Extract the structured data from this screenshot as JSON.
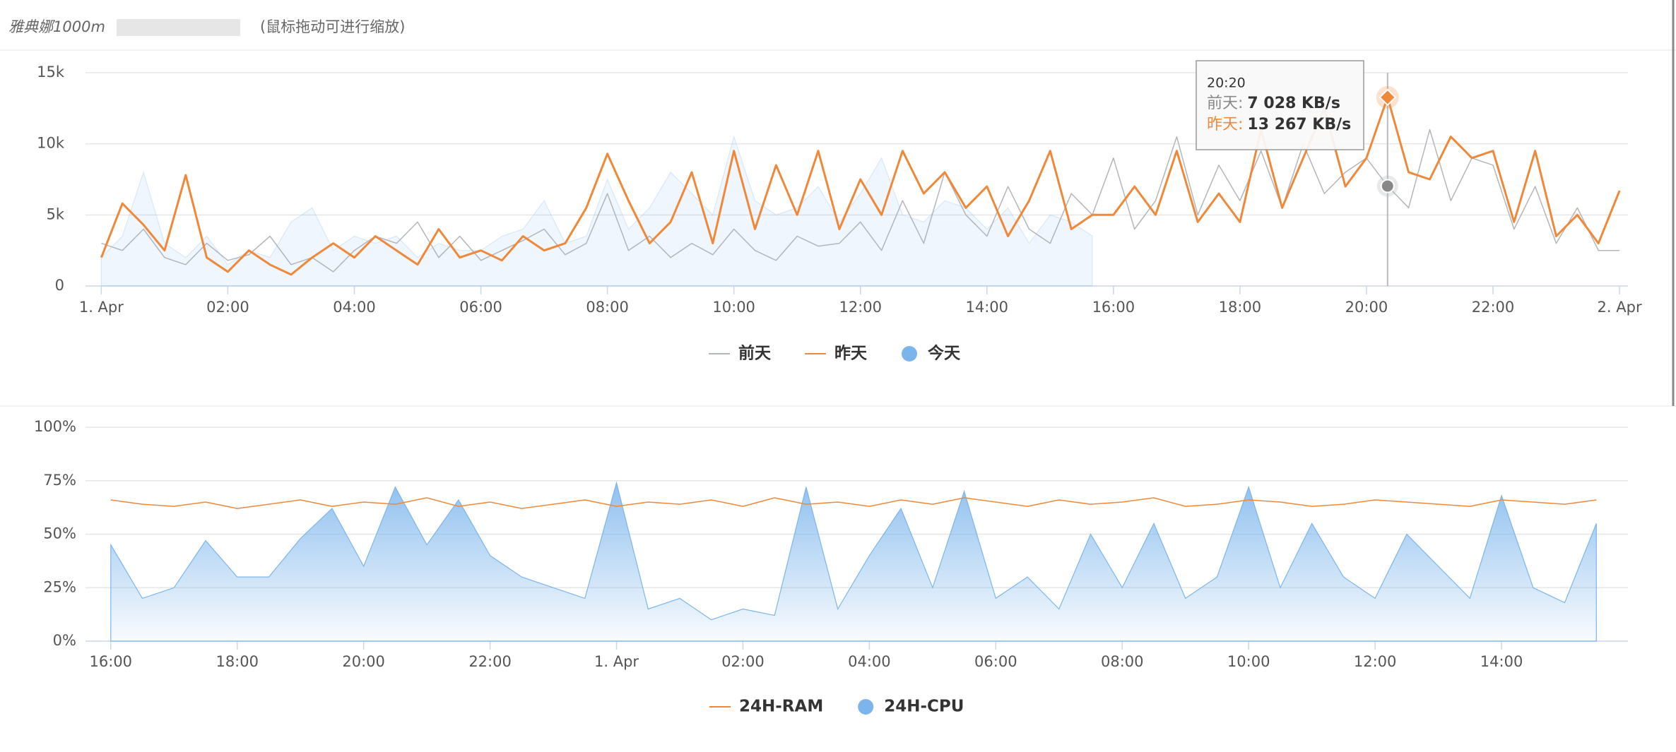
{
  "header": {
    "title": "雅典娜1000m",
    "subtitle": "(鼠标拖动可进行缩放)"
  },
  "tooltip": {
    "time": "20:20",
    "rows": [
      {
        "label": "前天:",
        "value": "7 028 KB/s"
      },
      {
        "label": "昨天:",
        "value": "13 267 KB/s"
      }
    ]
  },
  "chart_data": [
    {
      "type": "line",
      "xlim": [
        -15,
        1448
      ],
      "ylim": [
        0,
        15000
      ],
      "xticks": [
        {
          "value": 0,
          "label": "1. Apr"
        },
        {
          "value": 120,
          "label": "02:00"
        },
        {
          "value": 240,
          "label": "04:00"
        },
        {
          "value": 360,
          "label": "06:00"
        },
        {
          "value": 480,
          "label": "08:00"
        },
        {
          "value": 600,
          "label": "10:00"
        },
        {
          "value": 720,
          "label": "12:00"
        },
        {
          "value": 840,
          "label": "14:00"
        },
        {
          "value": 960,
          "label": "16:00"
        },
        {
          "value": 1080,
          "label": "18:00"
        },
        {
          "value": 1200,
          "label": "20:00"
        },
        {
          "value": 1320,
          "label": "22:00"
        },
        {
          "value": 1440,
          "label": "2. Apr"
        }
      ],
      "yticks": [
        0,
        {
          "value": 5000,
          "label": "5k"
        },
        {
          "value": 10000,
          "label": "10k"
        },
        {
          "value": 15000,
          "label": "15k"
        }
      ],
      "grid": true,
      "x": [
        0,
        20,
        40,
        60,
        80,
        100,
        120,
        140,
        160,
        180,
        200,
        220,
        240,
        260,
        280,
        300,
        320,
        340,
        360,
        380,
        400,
        420,
        440,
        460,
        480,
        500,
        520,
        540,
        560,
        580,
        600,
        620,
        640,
        660,
        680,
        700,
        720,
        740,
        760,
        780,
        800,
        820,
        840,
        860,
        880,
        900,
        920,
        940,
        960,
        980,
        1000,
        1020,
        1040,
        1060,
        1080,
        1100,
        1120,
        1140,
        1160,
        1180,
        1200,
        1220,
        1240,
        1260,
        1280,
        1300,
        1320,
        1340,
        1360,
        1380,
        1400,
        1420,
        1440
      ],
      "series": [
        {
          "name": "前天",
          "type": "line",
          "color": "#b2b6bb",
          "values": [
            3000,
            2500,
            4000,
            2000,
            1500,
            3000,
            1800,
            2200,
            3500,
            1500,
            2000,
            1000,
            2500,
            3500,
            3000,
            4500,
            2000,
            3500,
            1800,
            2500,
            3200,
            4000,
            2200,
            3000,
            6500,
            2500,
            3500,
            2000,
            3000,
            2200,
            4000,
            2500,
            1800,
            3500,
            2800,
            3000,
            4500,
            2500,
            6000,
            3000,
            8000,
            5000,
            3500,
            7000,
            4000,
            3000,
            6500,
            5000,
            9000,
            4000,
            6000,
            10500,
            5000,
            8500,
            6000,
            9500,
            5500,
            10000,
            6500,
            8000,
            9000,
            7028,
            5500,
            11000,
            6000,
            9000,
            8500,
            4000,
            7000,
            3000,
            5500,
            2500,
            2500
          ]
        },
        {
          "name": "昨天",
          "type": "line",
          "color": "#f0883a",
          "values": [
            2000,
            5800,
            4300,
            2500,
            7800,
            2000,
            1000,
            2500,
            1500,
            800,
            2000,
            3000,
            2000,
            3500,
            2500,
            1500,
            4000,
            2000,
            2500,
            1800,
            3500,
            2500,
            3000,
            5500,
            9300,
            6000,
            3000,
            4500,
            8000,
            3000,
            9500,
            4000,
            8500,
            5000,
            9500,
            4000,
            7500,
            5000,
            9500,
            6500,
            8000,
            5500,
            7000,
            3500,
            6000,
            9500,
            4000,
            5000,
            5000,
            7000,
            5000,
            9500,
            4500,
            6500,
            4500,
            11000,
            5500,
            9000,
            12500,
            7000,
            9000,
            13267,
            8000,
            7500,
            10500,
            9000,
            9500,
            4500,
            9500,
            3500,
            5000,
            3000,
            6700
          ]
        },
        {
          "name": "今天",
          "type": "area",
          "color": "#7cb5ec",
          "values": [
            2000,
            3500,
            8000,
            3000,
            2000,
            3500,
            1500,
            2500,
            2000,
            4500,
            5500,
            2500,
            3500,
            3000,
            3500,
            2000,
            3000,
            2500,
            2500,
            3500,
            4000,
            6000,
            3000,
            3500,
            7500,
            4000,
            5500,
            8000,
            6500,
            5000,
            10500,
            6000,
            5000,
            5500,
            7000,
            4500,
            6500,
            9000,
            5000,
            4500,
            6000,
            5500,
            4000,
            5500,
            3000,
            5000,
            4500,
            3500,
            null,
            null,
            null,
            null,
            null,
            null,
            null,
            null,
            null,
            null,
            null,
            null,
            null,
            null,
            null,
            null,
            null,
            null,
            null,
            null,
            null,
            null,
            null,
            null,
            null
          ]
        }
      ]
    },
    {
      "type": "line",
      "xlim": [
        -504,
        960
      ],
      "ylim": [
        0,
        100
      ],
      "xticks": [
        {
          "value": -480,
          "label": "16:00"
        },
        {
          "value": -360,
          "label": "18:00"
        },
        {
          "value": -240,
          "label": "20:00"
        },
        {
          "value": -120,
          "label": "22:00"
        },
        {
          "value": 0,
          "label": "1. Apr"
        },
        {
          "value": 120,
          "label": "02:00"
        },
        {
          "value": 240,
          "label": "04:00"
        },
        {
          "value": 360,
          "label": "06:00"
        },
        {
          "value": 480,
          "label": "08:00"
        },
        {
          "value": 600,
          "label": "10:00"
        },
        {
          "value": 720,
          "label": "12:00"
        },
        {
          "value": 840,
          "label": "14:00"
        }
      ],
      "yticks": [
        {
          "value": 0,
          "label": "0%"
        },
        {
          "value": 25,
          "label": "25%"
        },
        {
          "value": 50,
          "label": "50%"
        },
        {
          "value": 75,
          "label": "75%"
        },
        {
          "value": 100,
          "label": "100%"
        }
      ],
      "grid": true,
      "x": [
        -480,
        -450,
        -420,
        -390,
        -360,
        -330,
        -300,
        -270,
        -240,
        -210,
        -180,
        -150,
        -120,
        -90,
        -60,
        -30,
        0,
        30,
        60,
        90,
        120,
        150,
        180,
        210,
        240,
        270,
        300,
        330,
        360,
        390,
        420,
        450,
        480,
        510,
        540,
        570,
        600,
        630,
        660,
        690,
        720,
        750,
        780,
        810,
        840,
        870,
        900,
        930
      ],
      "series": [
        {
          "name": "24H-RAM",
          "type": "line",
          "color": "#f0883a",
          "values": [
            66,
            64,
            63,
            65,
            62,
            64,
            66,
            63,
            65,
            64,
            67,
            63,
            65,
            62,
            64,
            66,
            63,
            65,
            64,
            66,
            63,
            67,
            64,
            65,
            63,
            66,
            64,
            67,
            65,
            63,
            66,
            64,
            65,
            67,
            63,
            64,
            66,
            65,
            63,
            64,
            66,
            65,
            64,
            63,
            66,
            65,
            64,
            66
          ]
        },
        {
          "name": "24H-CPU",
          "type": "area",
          "color": "#7cb5ec",
          "values": [
            45,
            20,
            25,
            47,
            30,
            30,
            48,
            62,
            35,
            72,
            45,
            66,
            40,
            30,
            25,
            20,
            74,
            15,
            20,
            10,
            15,
            12,
            72,
            15,
            40,
            62,
            25,
            70,
            20,
            30,
            15,
            50,
            25,
            55,
            20,
            30,
            72,
            25,
            55,
            30,
            20,
            50,
            35,
            20,
            68,
            25,
            18,
            55
          ]
        }
      ]
    }
  ]
}
